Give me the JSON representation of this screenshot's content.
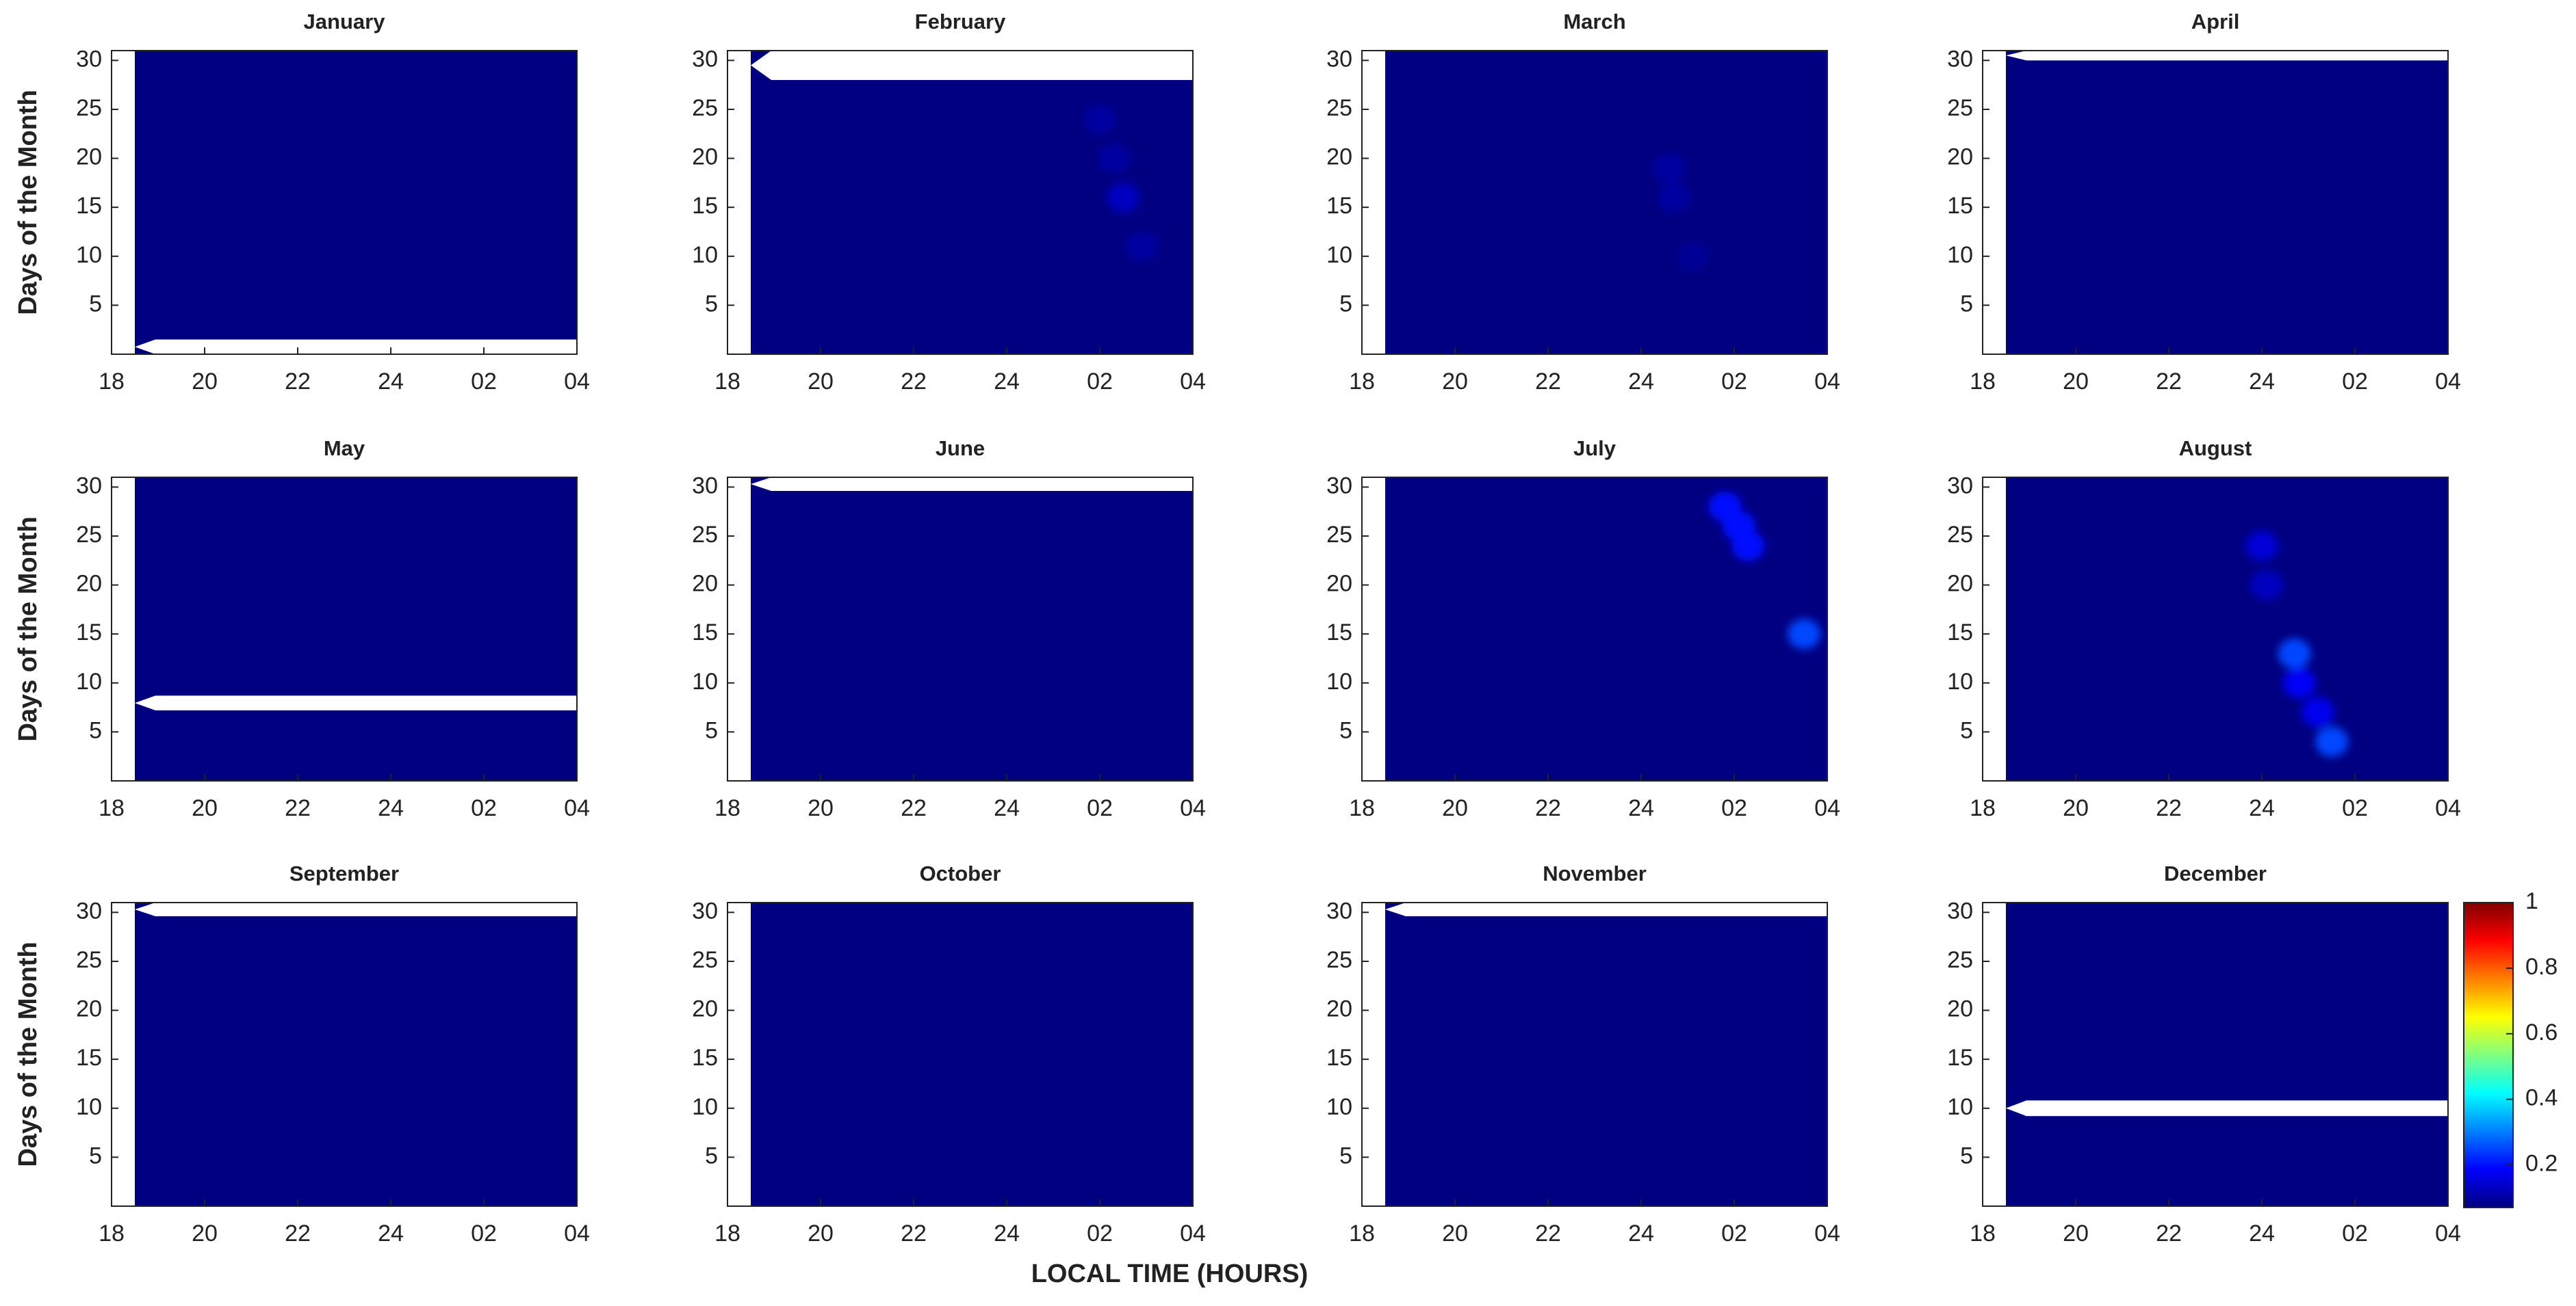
{
  "chart_data": {
    "type": "contour",
    "xlabel": "LOCAL TIME (HOURS)",
    "ylabel": "Days of the Month",
    "xlim": [
      18,
      28
    ],
    "xticks": [
      18,
      20,
      22,
      24,
      {
        "value": 26,
        "label": "02"
      },
      {
        "value": 28,
        "label": "04"
      }
    ],
    "ylim": [
      0,
      31
    ],
    "yticks": [
      5,
      10,
      15,
      20,
      25,
      30
    ],
    "no_data_hours": [
      18,
      18.5
    ],
    "colorbar": {
      "clim": [
        0.07,
        1
      ],
      "ticks": [
        0.2,
        0.4,
        0.6,
        0.8,
        1
      ]
    },
    "panels": [
      {
        "title": "January",
        "background": 0.07,
        "no_data_days": [
          0,
          1.5
        ],
        "hotspots": []
      },
      {
        "title": "February",
        "background": 0.07,
        "no_data_days": [
          28,
          31
        ],
        "hotspots": [
          {
            "x": 26.0,
            "y": 24,
            "value": 0.1
          },
          {
            "x": 26.3,
            "y": 20,
            "value": 0.1
          },
          {
            "x": 26.5,
            "y": 16,
            "value": 0.13
          },
          {
            "x": 26.9,
            "y": 11,
            "value": 0.1
          }
        ]
      },
      {
        "title": "March",
        "background": 0.07,
        "hotspots": [
          {
            "x": 24.6,
            "y": 19,
            "value": 0.1
          },
          {
            "x": 24.7,
            "y": 16,
            "value": 0.1
          },
          {
            "x": 25.1,
            "y": 10,
            "value": 0.09
          }
        ]
      },
      {
        "title": "April",
        "background": 0.07,
        "no_data_days": [
          30,
          31
        ],
        "hotspots": []
      },
      {
        "title": "May",
        "background": 0.07,
        "no_data_days": [
          7.2,
          8.7
        ],
        "hotspots": []
      },
      {
        "title": "June",
        "background": 0.07,
        "no_data_days": [
          29.6,
          31
        ],
        "hotspots": []
      },
      {
        "title": "July",
        "background": 0.07,
        "hotspots": [
          {
            "x": 25.8,
            "y": 28,
            "value": 0.2
          },
          {
            "x": 26.1,
            "y": 26,
            "value": 0.2
          },
          {
            "x": 26.3,
            "y": 24,
            "value": 0.2
          },
          {
            "x": 27.5,
            "y": 15,
            "value": 0.25
          }
        ]
      },
      {
        "title": "August",
        "background": 0.07,
        "hotspots": [
          {
            "x": 24.0,
            "y": 24,
            "value": 0.15
          },
          {
            "x": 24.1,
            "y": 20,
            "value": 0.13
          },
          {
            "x": 24.7,
            "y": 13,
            "value": 0.25
          },
          {
            "x": 24.8,
            "y": 10,
            "value": 0.18
          },
          {
            "x": 25.2,
            "y": 7,
            "value": 0.17
          },
          {
            "x": 25.5,
            "y": 4,
            "value": 0.25
          }
        ]
      },
      {
        "title": "September",
        "background": 0.07,
        "no_data_days": [
          29.6,
          31
        ],
        "hotspots": []
      },
      {
        "title": "October",
        "background": 0.07,
        "hotspots": []
      },
      {
        "title": "November",
        "background": 0.07,
        "no_data_days": [
          29.6,
          31
        ],
        "hotspots": []
      },
      {
        "title": "December",
        "background": 0.07,
        "no_data_days": [
          9.2,
          10.8
        ],
        "hotspots": []
      }
    ]
  }
}
